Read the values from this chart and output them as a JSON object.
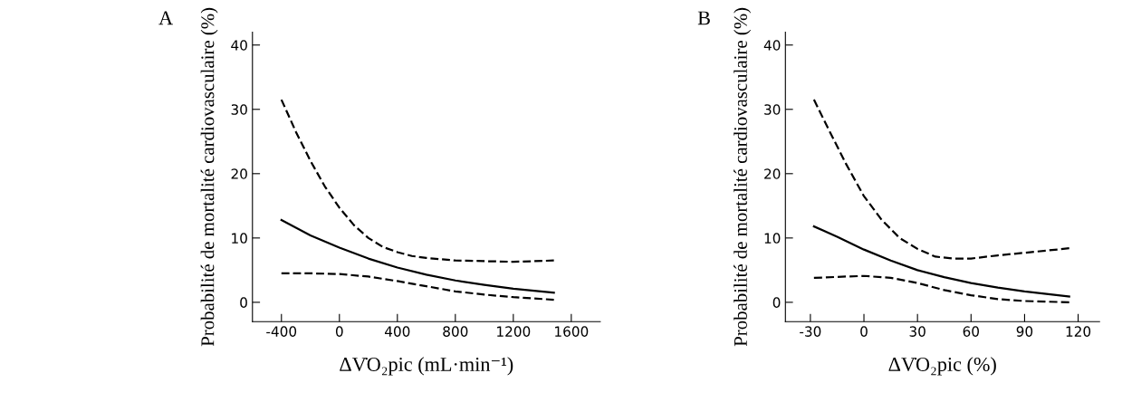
{
  "chart_data": [
    {
      "type": "line",
      "title": "A",
      "xlabel": "ΔV̇O₂pic (mL·min⁻¹)",
      "ylabel": "Probabilité de mortalité cardiovasculaire (%)",
      "xlim": [
        -600,
        1800
      ],
      "xticks": [
        -400,
        0,
        400,
        800,
        1200,
        1600
      ],
      "ylim": [
        -3,
        42
      ],
      "yticks": [
        0,
        10,
        20,
        30,
        40
      ],
      "grid": false,
      "legend": false,
      "series": [
        {
          "color": "#000000",
          "line_style": "solid",
          "x": [
            -400,
            -200,
            0,
            200,
            400,
            600,
            800,
            1000,
            1200,
            1480
          ],
          "values": [
            12.8,
            10.4,
            8.5,
            6.8,
            5.4,
            4.3,
            3.4,
            2.7,
            2.1,
            1.5
          ]
        },
        {
          "color": "#000000",
          "line_style": "dashed",
          "x": [
            -400,
            -300,
            -200,
            -100,
            0,
            100,
            200,
            300,
            400,
            500,
            600,
            800,
            1000,
            1200,
            1480
          ],
          "values": [
            31.5,
            26.5,
            22,
            18,
            14.7,
            12,
            10,
            8.6,
            7.8,
            7.2,
            6.9,
            6.5,
            6.4,
            6.3,
            6.5
          ]
        },
        {
          "color": "#000000",
          "line_style": "dashed",
          "x": [
            -400,
            -200,
            0,
            200,
            400,
            600,
            800,
            1000,
            1200,
            1480
          ],
          "values": [
            4.5,
            4.5,
            4.4,
            4.0,
            3.3,
            2.5,
            1.7,
            1.2,
            0.8,
            0.4
          ]
        }
      ]
    },
    {
      "type": "line",
      "title": "B",
      "xlabel": "ΔV̇O₂pic (%)",
      "ylabel": "Probabilité de mortalité cardiovasculaire (%)",
      "xlim": [
        -44,
        132
      ],
      "xticks": [
        -30,
        0,
        30,
        60,
        90,
        120
      ],
      "ylim": [
        -3,
        42
      ],
      "yticks": [
        0,
        10,
        20,
        30,
        40
      ],
      "grid": false,
      "legend": false,
      "series": [
        {
          "color": "#000000",
          "line_style": "solid",
          "x": [
            -28,
            -15,
            0,
            15,
            30,
            45,
            60,
            75,
            90,
            115
          ],
          "values": [
            11.8,
            10.2,
            8.2,
            6.5,
            5.0,
            3.9,
            3.0,
            2.3,
            1.7,
            0.9
          ]
        },
        {
          "color": "#000000",
          "line_style": "dashed",
          "x": [
            -28,
            -20,
            -10,
            0,
            10,
            20,
            30,
            40,
            50,
            60,
            75,
            90,
            115
          ],
          "values": [
            31.5,
            27,
            21.5,
            16.5,
            12.8,
            10,
            8.3,
            7.1,
            6.8,
            6.8,
            7.3,
            7.7,
            8.4
          ]
        },
        {
          "color": "#000000",
          "line_style": "dashed",
          "x": [
            -28,
            -10,
            0,
            15,
            30,
            45,
            60,
            75,
            90,
            115
          ],
          "values": [
            3.8,
            4.0,
            4.1,
            3.8,
            3.0,
            1.9,
            1.1,
            0.5,
            0.2,
            0.0
          ]
        }
      ]
    }
  ]
}
